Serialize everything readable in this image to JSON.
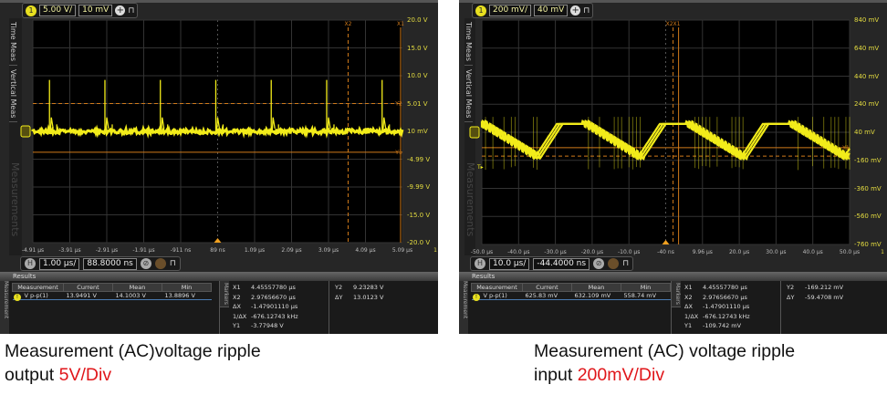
{
  "scopes": [
    {
      "channel": "1",
      "volts_per_div": "5.00 V/",
      "offset": "10 mV",
      "tabs": [
        "Time Meas",
        "Vertical Meas"
      ],
      "ghost_tab": "Measurements",
      "y_labels": [
        "20.0 V",
        "15.0 V",
        "10.0 V",
        "5.01 V",
        "10 mV",
        "-4.99 V",
        "-9.99 V",
        "-15.0 V",
        "-20.0 V"
      ],
      "x_labels": [
        "-4.91 µs",
        "-3.91 µs",
        "-2.91 µs",
        "-1.91 µs",
        "-911 ns",
        "89 ns",
        "1.09 µs",
        "2.09 µs",
        "3.09 µs",
        "4.09 µs",
        "5.09 µs"
      ],
      "x_end_marker": "1",
      "cursor_labels": {
        "x2": "X2",
        "x1": "X1",
        "y2": "Y2",
        "y1": "Y1"
      },
      "time_per_div": "1.00 µs/",
      "time_offset": "88.8000 ns",
      "results_title": "Results",
      "meas_tab": "Measurement",
      "markers_tab": "Markers",
      "table": {
        "headers": [
          "Measurement",
          "Current",
          "Mean",
          "Min"
        ],
        "row": [
          "V p-p(1)",
          "13.9491 V",
          "14.1003 V",
          "13.8896 V"
        ]
      },
      "markers": [
        [
          "X1",
          "4.45557780 µs"
        ],
        [
          "X2",
          "2.97656670 µs"
        ],
        [
          "ΔX",
          "-1.47901110 µs"
        ],
        [
          "1/ΔX",
          "-676.12743 kHz"
        ],
        [
          "Y1",
          "-3.77948 V"
        ]
      ],
      "markers2": [
        [
          "Y2",
          "9.23283 V"
        ],
        [
          "ΔY",
          "13.0123 V"
        ]
      ]
    },
    {
      "channel": "1",
      "volts_per_div": "200 mV/",
      "offset": "40 mV",
      "tabs": [
        "Time Meas",
        "Vertical Meas"
      ],
      "ghost_tab": "Measurements",
      "y_labels": [
        "840 mV",
        "640 mV",
        "440 mV",
        "240 mV",
        "40 mV",
        "-160 mV",
        "-360 mV",
        "-560 mV",
        "-760 mV"
      ],
      "x_labels": [
        "-50.0 µs",
        "-40.0 µs",
        "-30.0 µs",
        "-20.0 µs",
        "-10.0 µs",
        "-40 ns",
        "9.96 µs",
        "20.0 µs",
        "30.0 µs",
        "40.0 µs",
        "50.0 µs"
      ],
      "x_end_marker": "1",
      "cursor_labels": {
        "x2": "X2X1",
        "x1": "",
        "y2": "Y2",
        "y1": "Y1"
      },
      "time_per_div": "10.0 µs/",
      "time_offset": "-44.4000 ns",
      "results_title": "Results",
      "meas_tab": "Measurement",
      "markers_tab": "Markers",
      "table": {
        "headers": [
          "Measurement",
          "Current",
          "Mean",
          "Min"
        ],
        "row": [
          "V p-p(1)",
          "625.83 mV",
          "632.109 mV",
          "558.74 mV"
        ]
      },
      "markers": [
        [
          "X1",
          "4.45557780 µs"
        ],
        [
          "X2",
          "2.97656670 µs"
        ],
        [
          "ΔX",
          "-1.47901110 µs"
        ],
        [
          "1/ΔX",
          "-676.12743 kHz"
        ],
        [
          "Y1",
          "-109.742 mV"
        ]
      ],
      "markers2": [
        [
          "Y2",
          "-169.212 mV"
        ],
        [
          "ΔY",
          "-59.4708 mV"
        ]
      ]
    }
  ],
  "captions": [
    {
      "line1": "Measurement (AC)voltage ripple",
      "line2_prefix": "output ",
      "line2_highlight": "5V/Div"
    },
    {
      "line1": "Measurement (AC) voltage ripple",
      "line2_prefix": "input ",
      "line2_highlight": "200mV/Div"
    }
  ],
  "colors": {
    "trace": "#f2ec1a",
    "cursor": "#d07a1a",
    "highlight": "#e0161a",
    "axis_label": "#e4dc40"
  }
}
